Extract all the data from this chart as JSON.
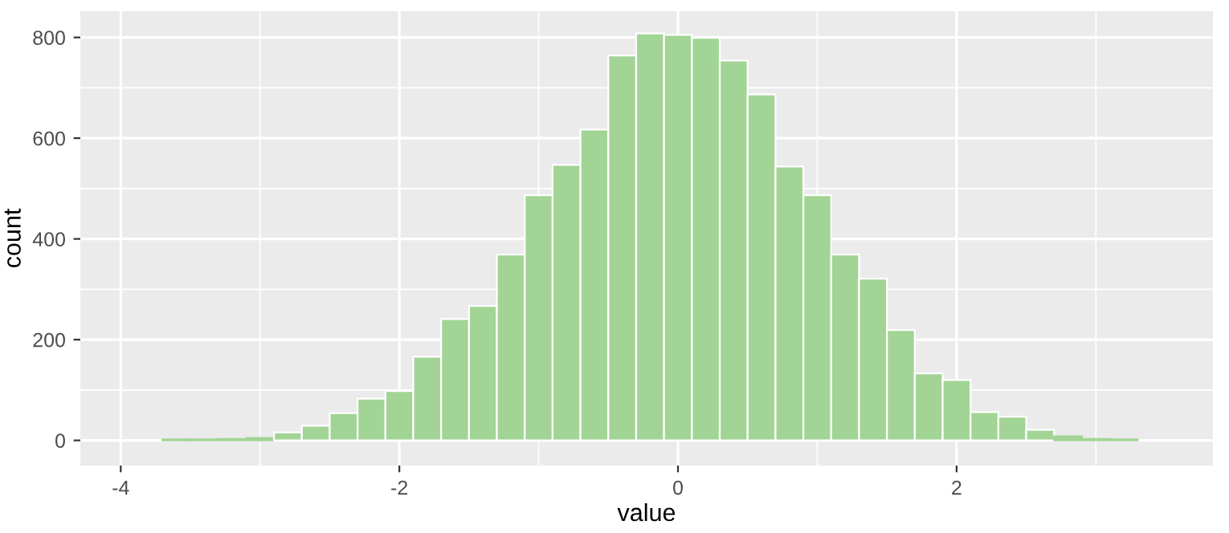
{
  "chart_data": {
    "type": "histogram",
    "xlabel": "value",
    "ylabel": "count",
    "color": "#a2d495",
    "bins": [
      -3.7,
      -3.5,
      -3.3,
      -3.1,
      -2.9,
      -2.7,
      -2.5,
      -2.3,
      -2.1,
      -1.9,
      -1.7,
      -1.5,
      -1.3,
      -1.1,
      -0.9,
      -0.7,
      -0.5,
      -0.3,
      -0.1,
      0.1,
      0.3,
      0.5,
      0.7,
      0.9,
      1.1,
      1.3,
      1.5,
      1.7,
      1.9,
      2.1,
      2.3,
      2.5,
      2.7,
      2.9,
      3.1,
      3.3
    ],
    "values": [
      2,
      2,
      3,
      5,
      16,
      29,
      54,
      83,
      98,
      166,
      241,
      267,
      369,
      487,
      547,
      617,
      764,
      808,
      805,
      799,
      754,
      687,
      544,
      487,
      369,
      321,
      219,
      133,
      120,
      56,
      47,
      21,
      8,
      3,
      2
    ],
    "xlim": [
      -4.29,
      3.84
    ],
    "ylim": [
      -50,
      852
    ],
    "xticks": [
      -4,
      -2,
      0,
      2
    ],
    "yticks": [
      0,
      200,
      400,
      600,
      800
    ],
    "grid": true
  }
}
